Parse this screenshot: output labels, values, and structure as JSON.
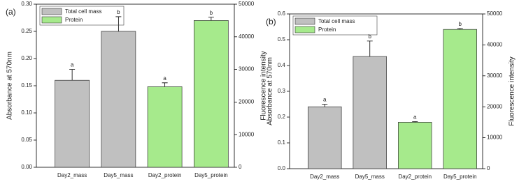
{
  "chart_data": [
    {
      "type": "bar",
      "panel_label": "(a)",
      "y_label": "Absorbance at 570nm",
      "y2_label": "Fluorescence intensity",
      "categories": [
        "Day2_mass",
        "Day5_mass",
        "Day2_protein",
        "Day5_protein"
      ],
      "series": [
        {
          "name": "Total cell mass",
          "color": "#c0c0c0",
          "axis": "y",
          "values": [
            0.16,
            0.25,
            null,
            null
          ],
          "errors": [
            0.02,
            0.027,
            null,
            null
          ],
          "significance": [
            "a",
            "b",
            null,
            null
          ]
        },
        {
          "name": "Protein",
          "color": "#a6ea8c",
          "axis": "y2",
          "values": [
            null,
            null,
            24700,
            45000
          ],
          "errors": [
            null,
            null,
            1200,
            1000
          ],
          "significance": [
            null,
            null,
            "a",
            "b"
          ]
        }
      ],
      "ylim": [
        0,
        0.3
      ],
      "yticks": [
        {
          "value": 0,
          "label": "0.00"
        },
        0.05,
        {
          "value": 0.1,
          "label": "0.10"
        },
        0.15,
        {
          "value": 0.2,
          "label": "0.20"
        },
        0.25,
        {
          "value": 0.3,
          "label": "0.30"
        }
      ],
      "y2lim": [
        0,
        50000
      ],
      "y2ticks": [
        0,
        10000,
        20000,
        30000,
        40000,
        50000
      ],
      "legend": "upper left"
    },
    {
      "type": "bar",
      "panel_label": "(b)",
      "y_label": "Absorbance at 570nm",
      "y2_label": "Fluorescence intensity",
      "categories": [
        "Day2_mass",
        "Day5_mass",
        "Day2_protein",
        "Day5_protein"
      ],
      "series": [
        {
          "name": "Total cell mass",
          "color": "#c0c0c0",
          "axis": "y",
          "values": [
            0.24,
            0.435,
            null,
            null
          ],
          "errors": [
            0.01,
            0.06,
            null,
            null
          ],
          "significance": [
            "a",
            "b",
            null,
            null
          ]
        },
        {
          "name": "Protein",
          "color": "#a6ea8c",
          "axis": "y2",
          "values": [
            null,
            null,
            15000,
            45000
          ],
          "errors": [
            null,
            null,
            200,
            300
          ],
          "significance": [
            null,
            null,
            "a",
            "b"
          ]
        }
      ],
      "ylim": [
        0,
        0.6
      ],
      "yticks": [
        {
          "value": 0,
          "label": "0.0"
        },
        0.1,
        0.2,
        0.3,
        0.4,
        0.5,
        0.6
      ],
      "y2lim": [
        0,
        50000
      ],
      "y2ticks": [
        0,
        10000,
        20000,
        30000,
        40000,
        50000
      ],
      "legend": "upper left"
    }
  ]
}
